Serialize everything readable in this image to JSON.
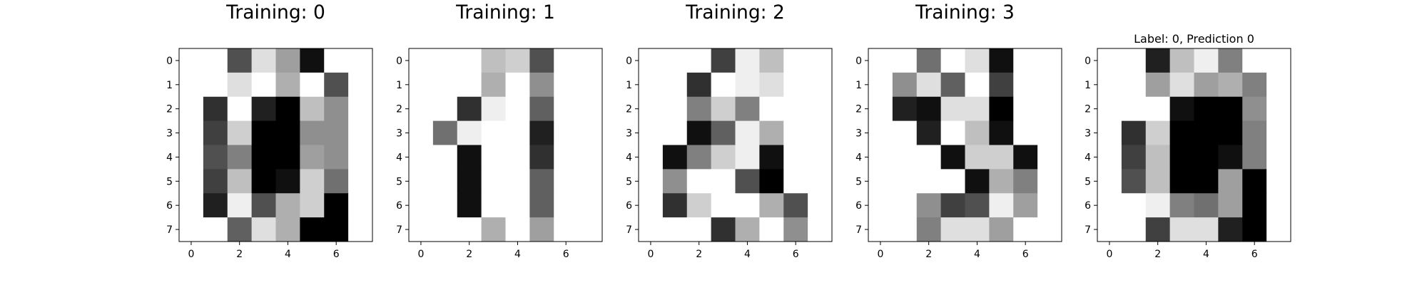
{
  "chart_data": [
    {
      "type": "heatmap",
      "colormap": "gray_r",
      "value_range": [
        0,
        16
      ],
      "title": "Training: 0",
      "xticks": [
        "0",
        "2",
        "4",
        "6"
      ],
      "yticks": [
        "0",
        "1",
        "2",
        "3",
        "4",
        "5",
        "6",
        "7"
      ],
      "matrix": [
        [
          0,
          0,
          11,
          2,
          6,
          15,
          0,
          0
        ],
        [
          0,
          0,
          2,
          0,
          5,
          0,
          11,
          0
        ],
        [
          0,
          13,
          0,
          14,
          16,
          4,
          7,
          0
        ],
        [
          0,
          12,
          3,
          16,
          16,
          7,
          7,
          0
        ],
        [
          0,
          11,
          8,
          16,
          16,
          6,
          7,
          0
        ],
        [
          0,
          12,
          4,
          16,
          15,
          3,
          9,
          0
        ],
        [
          0,
          14,
          1,
          11,
          5,
          3,
          16,
          0
        ],
        [
          0,
          0,
          10,
          2,
          5,
          16,
          16,
          0
        ]
      ]
    },
    {
      "type": "heatmap",
      "colormap": "gray_r",
      "value_range": [
        0,
        16
      ],
      "title": "Training: 1",
      "xticks": [
        "0",
        "2",
        "4",
        "6"
      ],
      "yticks": [
        "0",
        "1",
        "2",
        "3",
        "4",
        "5",
        "6",
        "7"
      ],
      "matrix": [
        [
          0,
          0,
          0,
          4,
          3,
          11,
          0,
          0
        ],
        [
          0,
          0,
          0,
          5,
          0,
          7,
          0,
          0
        ],
        [
          0,
          0,
          13,
          1,
          0,
          10,
          0,
          0
        ],
        [
          0,
          9,
          1,
          0,
          0,
          14,
          0,
          0
        ],
        [
          0,
          0,
          15,
          0,
          0,
          13,
          0,
          0
        ],
        [
          0,
          0,
          15,
          0,
          0,
          10,
          0,
          0
        ],
        [
          0,
          0,
          15,
          0,
          0,
          10,
          0,
          0
        ],
        [
          0,
          0,
          0,
          5,
          0,
          6,
          0,
          0
        ]
      ]
    },
    {
      "type": "heatmap",
      "colormap": "gray_r",
      "value_range": [
        0,
        16
      ],
      "title": "Training: 2",
      "xticks": [
        "0",
        "2",
        "4",
        "6"
      ],
      "yticks": [
        "0",
        "1",
        "2",
        "3",
        "4",
        "5",
        "6",
        "7"
      ],
      "matrix": [
        [
          0,
          0,
          0,
          12,
          1,
          4,
          0,
          0
        ],
        [
          0,
          0,
          13,
          0,
          1,
          2,
          0,
          0
        ],
        [
          0,
          0,
          8,
          3,
          8,
          0,
          0,
          0
        ],
        [
          0,
          0,
          15,
          10,
          1,
          5,
          0,
          0
        ],
        [
          0,
          15,
          8,
          3,
          1,
          15,
          0,
          0
        ],
        [
          0,
          7,
          0,
          0,
          11,
          16,
          0,
          0
        ],
        [
          0,
          13,
          3,
          0,
          0,
          5,
          11,
          0
        ],
        [
          0,
          0,
          0,
          13,
          5,
          0,
          7,
          0
        ]
      ]
    },
    {
      "type": "heatmap",
      "colormap": "gray_r",
      "value_range": [
        0,
        16
      ],
      "title": "Training: 3",
      "xticks": [
        "0",
        "2",
        "4",
        "6"
      ],
      "yticks": [
        "0",
        "1",
        "2",
        "3",
        "4",
        "5",
        "6",
        "7"
      ],
      "matrix": [
        [
          0,
          0,
          9,
          0,
          2,
          15,
          0,
          0
        ],
        [
          0,
          7,
          2,
          10,
          0,
          12,
          0,
          0
        ],
        [
          0,
          14,
          15,
          2,
          2,
          16,
          0,
          0
        ],
        [
          0,
          0,
          14,
          0,
          4,
          15,
          0,
          0
        ],
        [
          0,
          0,
          0,
          15,
          3,
          3,
          15,
          0
        ],
        [
          0,
          0,
          0,
          0,
          15,
          5,
          8,
          0
        ],
        [
          0,
          0,
          7,
          12,
          11,
          1,
          6,
          0
        ],
        [
          0,
          0,
          8,
          2,
          2,
          6,
          0,
          0
        ]
      ]
    },
    {
      "type": "heatmap",
      "colormap": "gray_r",
      "value_range": [
        0,
        16
      ],
      "title": "Label: 0, Prediction 0",
      "xticks": [
        "0",
        "2",
        "4",
        "6"
      ],
      "yticks": [
        "0",
        "1",
        "2",
        "3",
        "4",
        "5",
        "6",
        "7"
      ],
      "matrix": [
        [
          0,
          0,
          14,
          4,
          1,
          8,
          0,
          0
        ],
        [
          0,
          0,
          6,
          2,
          6,
          5,
          8,
          0
        ],
        [
          0,
          0,
          0,
          15,
          16,
          16,
          7,
          0
        ],
        [
          0,
          13,
          3,
          16,
          16,
          16,
          8,
          0
        ],
        [
          0,
          12,
          4,
          16,
          16,
          15,
          8,
          0
        ],
        [
          0,
          11,
          4,
          16,
          16,
          6,
          16,
          0
        ],
        [
          0,
          0,
          1,
          8,
          9,
          6,
          16,
          0
        ],
        [
          0,
          0,
          12,
          2,
          2,
          14,
          16,
          0
        ]
      ]
    }
  ]
}
